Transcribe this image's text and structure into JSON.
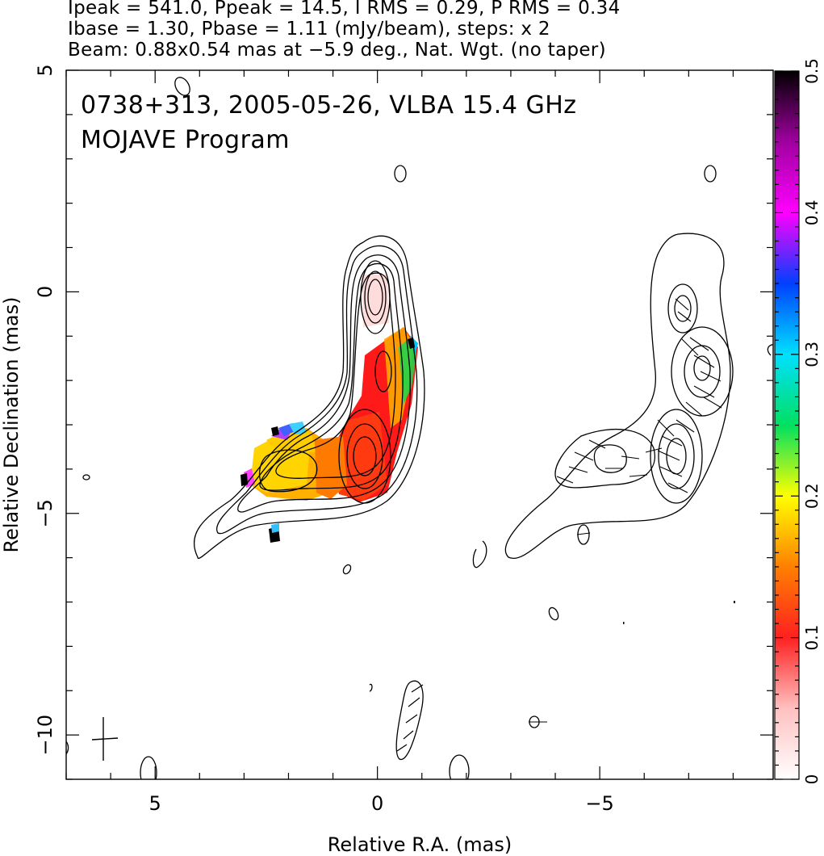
{
  "header": {
    "line1": "Ipeak = 541.0, Ppeak = 14.5, I RMS = 0.29, P RMS = 0.34",
    "line2": "Ibase = 1.30, Pbase = 1.11 (mJy/beam), steps: x 2",
    "line3": "Beam: 0.88x0.54 mas at −5.9 deg., Nat. Wgt. (no taper)"
  },
  "chart_data": {
    "type": "contour",
    "title": "0738+313, 2005-05-26, VLBA 15.4 GHz",
    "subtitle": "MOJAVE Program",
    "xlabel": "Relative R.A. (mas)",
    "ylabel": "Relative Declination (mas)",
    "xlim": [
      7,
      -8.9
    ],
    "ylim": [
      -11,
      5
    ],
    "xticks": [
      5,
      0,
      -5
    ],
    "yticks": [
      5,
      0,
      -5,
      -10
    ],
    "colorbar": {
      "range": [
        0,
        0.5
      ],
      "ticks": [
        0,
        0.1,
        0.2,
        0.3,
        0.4,
        0.5
      ],
      "palette": [
        "#ffffff",
        "#ffc0c0",
        "#ff2020",
        "#ff8000",
        "#ffff00",
        "#00e060",
        "#00e0ff",
        "#0040ff",
        "#ff00ff",
        "#a000a0",
        "#000000"
      ]
    },
    "contour_levels_mJy": [
      1.3,
      2.6,
      5.2,
      10.4,
      20.8,
      41.6,
      83.2,
      166.4,
      332.8
    ],
    "core": {
      "ra": 0,
      "dec": 0
    },
    "components": [
      {
        "ra": 0.3,
        "dec": -3.8
      },
      {
        "ra": -0.2,
        "dec": -1.8
      },
      {
        "ra": 2.0,
        "dec": -4.0
      }
    ],
    "beam": {
      "major_mas": 0.88,
      "minor_mas": 0.54,
      "pa_deg": -5.9
    }
  }
}
